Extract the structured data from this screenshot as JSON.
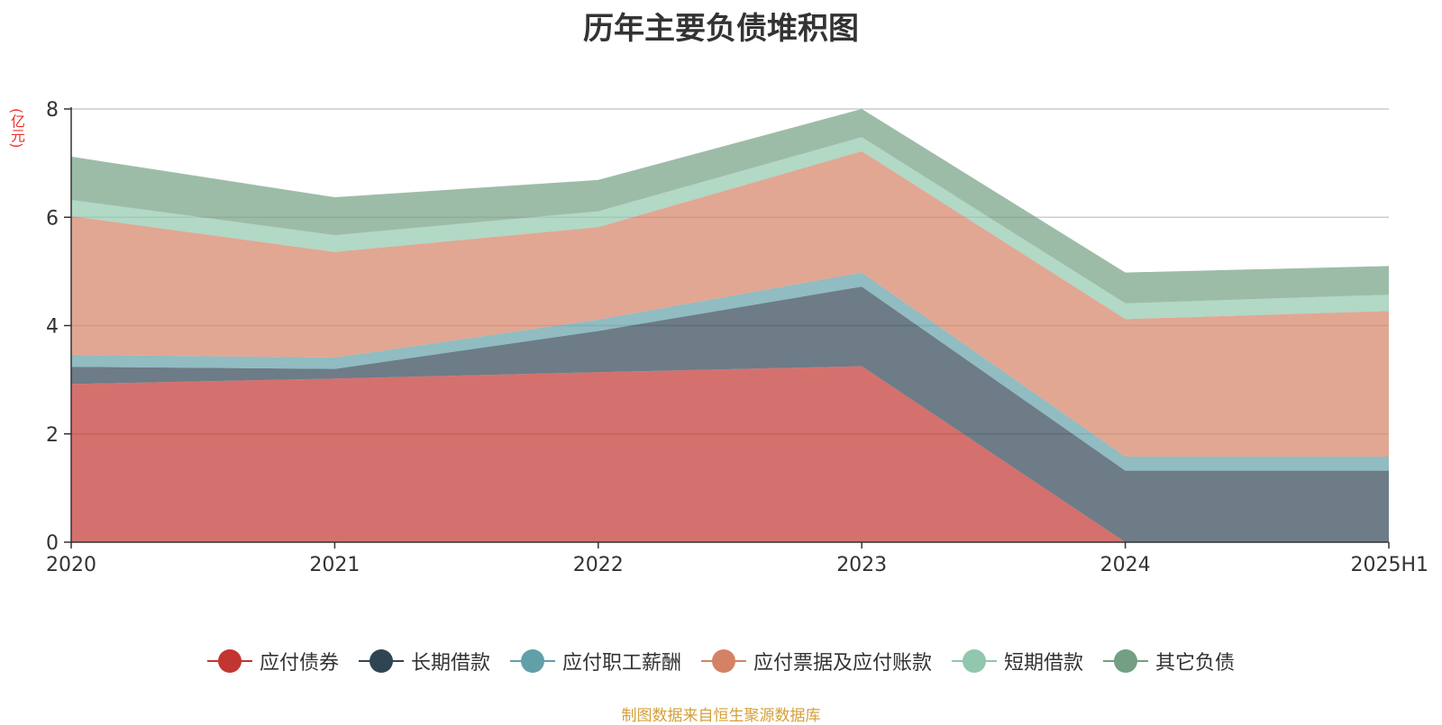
{
  "chart_data": {
    "type": "area",
    "stacked": true,
    "title": "历年主要负债堆积图",
    "unit_label": "(亿元)",
    "categories": [
      "2020",
      "2021",
      "2022",
      "2023",
      "2024",
      "2025H1"
    ],
    "ylim": [
      0,
      8
    ],
    "yticks": [
      "0",
      "2",
      "4",
      "6",
      "8"
    ],
    "grid": true,
    "legend_position": "bottom",
    "series": [
      {
        "name": "应付债券",
        "color": "#c23531",
        "values": [
          2.92,
          3.02,
          3.14,
          3.25,
          0.0,
          0.0
        ]
      },
      {
        "name": "长期借款",
        "color": "#2f4554",
        "values": [
          0.32,
          0.18,
          0.76,
          1.47,
          1.32,
          1.32
        ]
      },
      {
        "name": "应付职工薪酬",
        "color": "#61a0a8",
        "values": [
          0.22,
          0.21,
          0.21,
          0.26,
          0.26,
          0.26
        ]
      },
      {
        "name": "应付票据及应付账款",
        "color": "#d48265",
        "values": [
          2.56,
          1.95,
          1.71,
          2.24,
          2.54,
          2.69
        ]
      },
      {
        "name": "短期借款",
        "color": "#91c7ae",
        "values": [
          0.3,
          0.31,
          0.29,
          0.26,
          0.29,
          0.3
        ]
      },
      {
        "name": "其它负债",
        "color": "#749f83",
        "values": [
          0.8,
          0.7,
          0.58,
          0.52,
          0.57,
          0.53
        ]
      }
    ],
    "source": "制图数据来自恒生聚源数据库"
  }
}
